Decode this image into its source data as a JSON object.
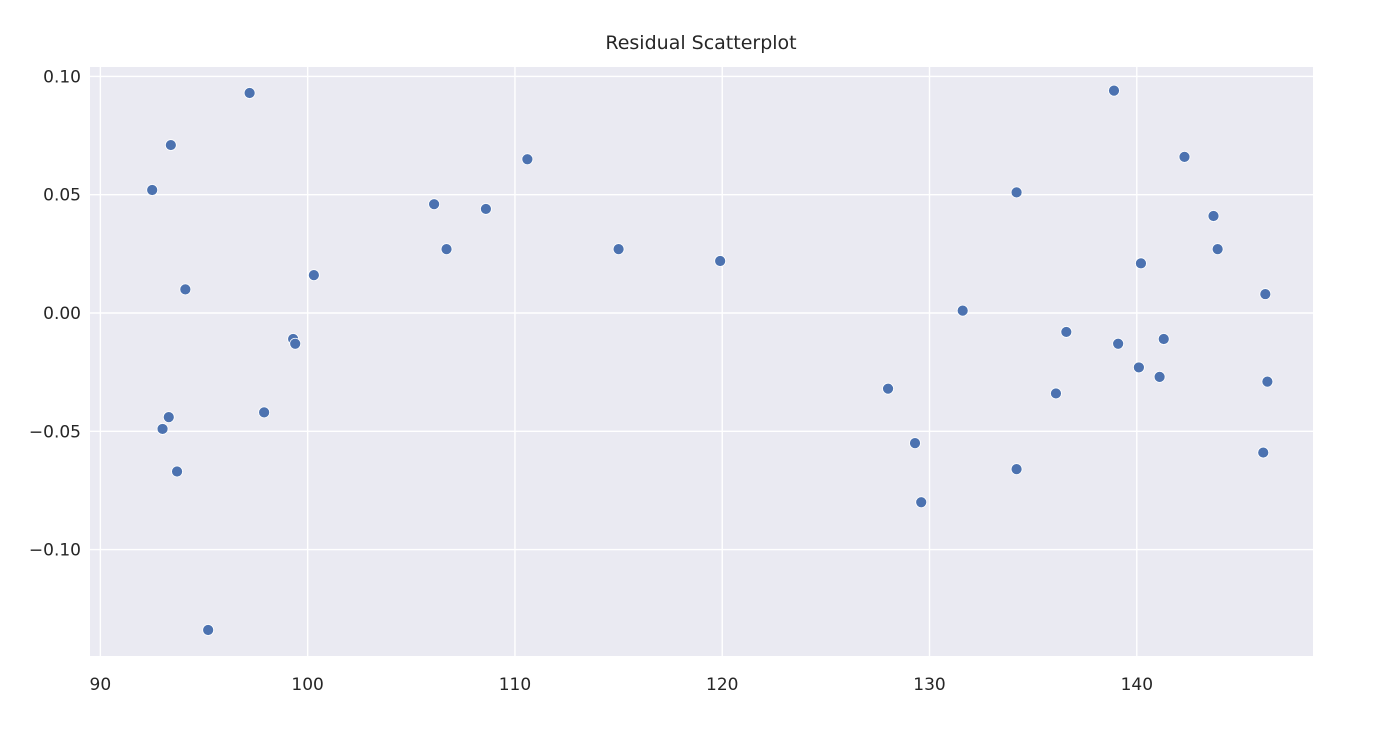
{
  "chart_data": {
    "type": "scatter",
    "title": "Residual Scatterplot",
    "xlabel": "",
    "ylabel": "",
    "xlim": [
      89.5,
      148.5
    ],
    "ylim": [
      -0.145,
      0.104
    ],
    "x_ticks": [
      90,
      100,
      110,
      120,
      130,
      140
    ],
    "x_tick_labels": [
      "90",
      "100",
      "110",
      "120",
      "130",
      "140"
    ],
    "y_ticks": [
      0.1,
      0.05,
      0.0,
      -0.05,
      -0.1
    ],
    "y_tick_labels": [
      "0.10",
      "0.05",
      "0.00",
      "−0.05",
      "−0.10"
    ],
    "grid": true,
    "point_color": "#4c72b0",
    "background_color": "#eaeaf2",
    "grid_color": "#ffffff",
    "points": [
      {
        "x": 92.5,
        "y": 0.052
      },
      {
        "x": 93.4,
        "y": 0.071
      },
      {
        "x": 94.1,
        "y": 0.01
      },
      {
        "x": 93.3,
        "y": -0.044
      },
      {
        "x": 93.0,
        "y": -0.049
      },
      {
        "x": 93.7,
        "y": -0.067
      },
      {
        "x": 95.2,
        "y": -0.134
      },
      {
        "x": 97.2,
        "y": 0.093
      },
      {
        "x": 97.9,
        "y": -0.042
      },
      {
        "x": 99.3,
        "y": -0.011
      },
      {
        "x": 99.4,
        "y": -0.013
      },
      {
        "x": 100.3,
        "y": 0.016
      },
      {
        "x": 106.1,
        "y": 0.046
      },
      {
        "x": 106.7,
        "y": 0.027
      },
      {
        "x": 108.6,
        "y": 0.044
      },
      {
        "x": 110.6,
        "y": 0.065
      },
      {
        "x": 115.0,
        "y": 0.027
      },
      {
        "x": 119.9,
        "y": 0.022
      },
      {
        "x": 128.0,
        "y": -0.032
      },
      {
        "x": 129.3,
        "y": -0.055
      },
      {
        "x": 129.6,
        "y": -0.08
      },
      {
        "x": 131.6,
        "y": 0.001
      },
      {
        "x": 134.2,
        "y": 0.051
      },
      {
        "x": 134.2,
        "y": -0.066
      },
      {
        "x": 136.1,
        "y": -0.034
      },
      {
        "x": 136.6,
        "y": -0.008
      },
      {
        "x": 138.9,
        "y": 0.094
      },
      {
        "x": 139.1,
        "y": -0.013
      },
      {
        "x": 140.1,
        "y": -0.023
      },
      {
        "x": 140.2,
        "y": 0.021
      },
      {
        "x": 141.1,
        "y": -0.027
      },
      {
        "x": 141.3,
        "y": -0.011
      },
      {
        "x": 142.3,
        "y": 0.066
      },
      {
        "x": 143.7,
        "y": 0.041
      },
      {
        "x": 143.9,
        "y": 0.027
      },
      {
        "x": 146.1,
        "y": -0.059
      },
      {
        "x": 146.2,
        "y": 0.008
      },
      {
        "x": 146.3,
        "y": -0.029
      }
    ]
  }
}
